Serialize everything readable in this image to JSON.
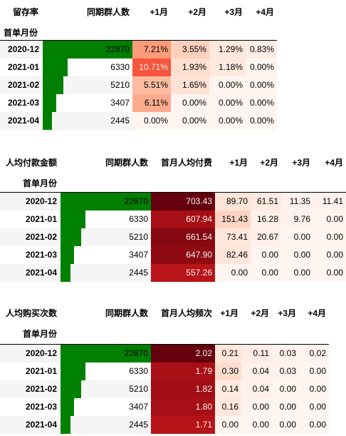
{
  "tables": [
    {
      "id": "retention",
      "corner": "留存率",
      "index_name": "首单月份",
      "columns": [
        "同期群人数",
        "+1月",
        "+2月",
        "+3月",
        "+4月"
      ],
      "rows": [
        {
          "label": "2020-12",
          "cohort": "22870",
          "cohort_value": 22870,
          "values": [
            "7.21%",
            "3.55%",
            "1.29%",
            "0.83%"
          ],
          "colors": [
            "#fb9b7a",
            "#fdd0bc",
            "#fee8dd",
            "#feede4"
          ]
        },
        {
          "label": "2021-01",
          "cohort": "6330",
          "cohort_value": 6330,
          "values": [
            "10.71%",
            "1.93%",
            "1.18%",
            "0.00%"
          ],
          "colors": [
            "#f5553c",
            "#fedfd0",
            "#fee9df",
            "#fff5f0"
          ]
        },
        {
          "label": "2021-02",
          "cohort": "5210",
          "cohort_value": 5210,
          "values": [
            "5.51%",
            "1.65%",
            "0.00%",
            "0.00%"
          ],
          "colors": [
            "#fcbca2",
            "#fee2d5",
            "#fff5f0",
            "#fff5f0"
          ]
        },
        {
          "label": "2021-03",
          "cohort": "3407",
          "cohort_value": 3407,
          "values": [
            "6.11%",
            "0.00%",
            "0.00%",
            "0.00%"
          ],
          "colors": [
            "#fcab8f",
            "#fff5f0",
            "#fff5f0",
            "#fff5f0"
          ]
        },
        {
          "label": "2021-04",
          "cohort": "2445",
          "cohort_value": 2445,
          "values": [
            "0.00%",
            "0.00%",
            "0.00%",
            "0.00%"
          ],
          "colors": [
            "#fff5f0",
            "#fff5f0",
            "#fff5f0",
            "#fff5f0"
          ]
        }
      ]
    },
    {
      "id": "arpu",
      "corner": "人均付款金额",
      "index_name": "首单月份",
      "columns": [
        "同期群人数",
        "首月人均付费",
        "+1月",
        "+2月",
        "+3月",
        "+4月"
      ],
      "rows": [
        {
          "label": "2020-12",
          "cohort": "22870",
          "cohort_value": 22870,
          "values": [
            "703.43",
            "89.70",
            "61.51",
            "11.35",
            "11.41"
          ],
          "colors": [
            "#67000d",
            "#fee5d8",
            "#feeae0",
            "#fff2ec",
            "#fff2ec"
          ]
        },
        {
          "label": "2021-01",
          "cohort": "6330",
          "cohort_value": 6330,
          "values": [
            "607.94",
            "151.43",
            "16.28",
            "9.76",
            "0.00"
          ],
          "colors": [
            "#a50f15",
            "#fdd4c2",
            "#fff0e8",
            "#fff2ec",
            "#fff5f0"
          ]
        },
        {
          "label": "2021-02",
          "cohort": "5210",
          "cohort_value": 5210,
          "values": [
            "661.54",
            "73.41",
            "20.67",
            "0.00",
            "0.00"
          ],
          "colors": [
            "#860811",
            "#fee8dd",
            "#ffefe8",
            "#fff5f0",
            "#fff5f0"
          ]
        },
        {
          "label": "2021-03",
          "cohort": "3407",
          "cohort_value": 3407,
          "values": [
            "647.90",
            "82.46",
            "0.00",
            "0.00",
            "0.00"
          ],
          "colors": [
            "#8e0912",
            "#fee6da",
            "#fff5f0",
            "#fff5f0",
            "#fff5f0"
          ]
        },
        {
          "label": "2021-04",
          "cohort": "2445",
          "cohort_value": 2445,
          "values": [
            "557.26",
            "0.00",
            "0.00",
            "0.00",
            "0.00"
          ],
          "colors": [
            "#b91419",
            "#fff5f0",
            "#fff5f0",
            "#fff5f0",
            "#fff5f0"
          ]
        }
      ]
    },
    {
      "id": "frequency",
      "corner": "人均购买次数",
      "index_name": "首单月份",
      "columns": [
        "同期群人数",
        "首月人均频次",
        "+1月",
        "+2月",
        "+3月",
        "+4月"
      ],
      "rows": [
        {
          "label": "2020-12",
          "cohort": "22870",
          "cohort_value": 22870,
          "values": [
            "2.02",
            "0.21",
            "0.11",
            "0.03",
            "0.02"
          ],
          "colors": [
            "#67000d",
            "#fee6da",
            "#ffede5",
            "#fff2ec",
            "#fff3ed"
          ]
        },
        {
          "label": "2021-01",
          "cohort": "6330",
          "cohort_value": 6330,
          "values": [
            "1.79",
            "0.30",
            "0.04",
            "0.03",
            "0.00"
          ],
          "colors": [
            "#a81016",
            "#fedccd",
            "#fff1ea",
            "#fff2ec",
            "#fff5f0"
          ]
        },
        {
          "label": "2021-02",
          "cohort": "5210",
          "cohort_value": 5210,
          "values": [
            "1.82",
            "0.14",
            "0.04",
            "0.00",
            "0.00"
          ],
          "colors": [
            "#a10e15",
            "#ffebe2",
            "#fff1ea",
            "#fff5f0",
            "#fff5f0"
          ]
        },
        {
          "label": "2021-03",
          "cohort": "3407",
          "cohort_value": 3407,
          "values": [
            "1.80",
            "0.16",
            "0.00",
            "0.00",
            "0.00"
          ],
          "colors": [
            "#a50f15",
            "#fee9df",
            "#fff5f0",
            "#fff5f0",
            "#fff5f0"
          ]
        },
        {
          "label": "2021-04",
          "cohort": "2445",
          "cohort_value": 2445,
          "values": [
            "1.71",
            "0.00",
            "0.00",
            "0.00",
            "0.00"
          ],
          "colors": [
            "#b51318",
            "#fff5f0",
            "#fff5f0",
            "#fff5f0",
            "#fff5f0"
          ]
        }
      ]
    }
  ],
  "colors": {
    "bar": "#008000",
    "stripe": "#f5f5f5",
    "dark_text": "#f1f1f1"
  }
}
